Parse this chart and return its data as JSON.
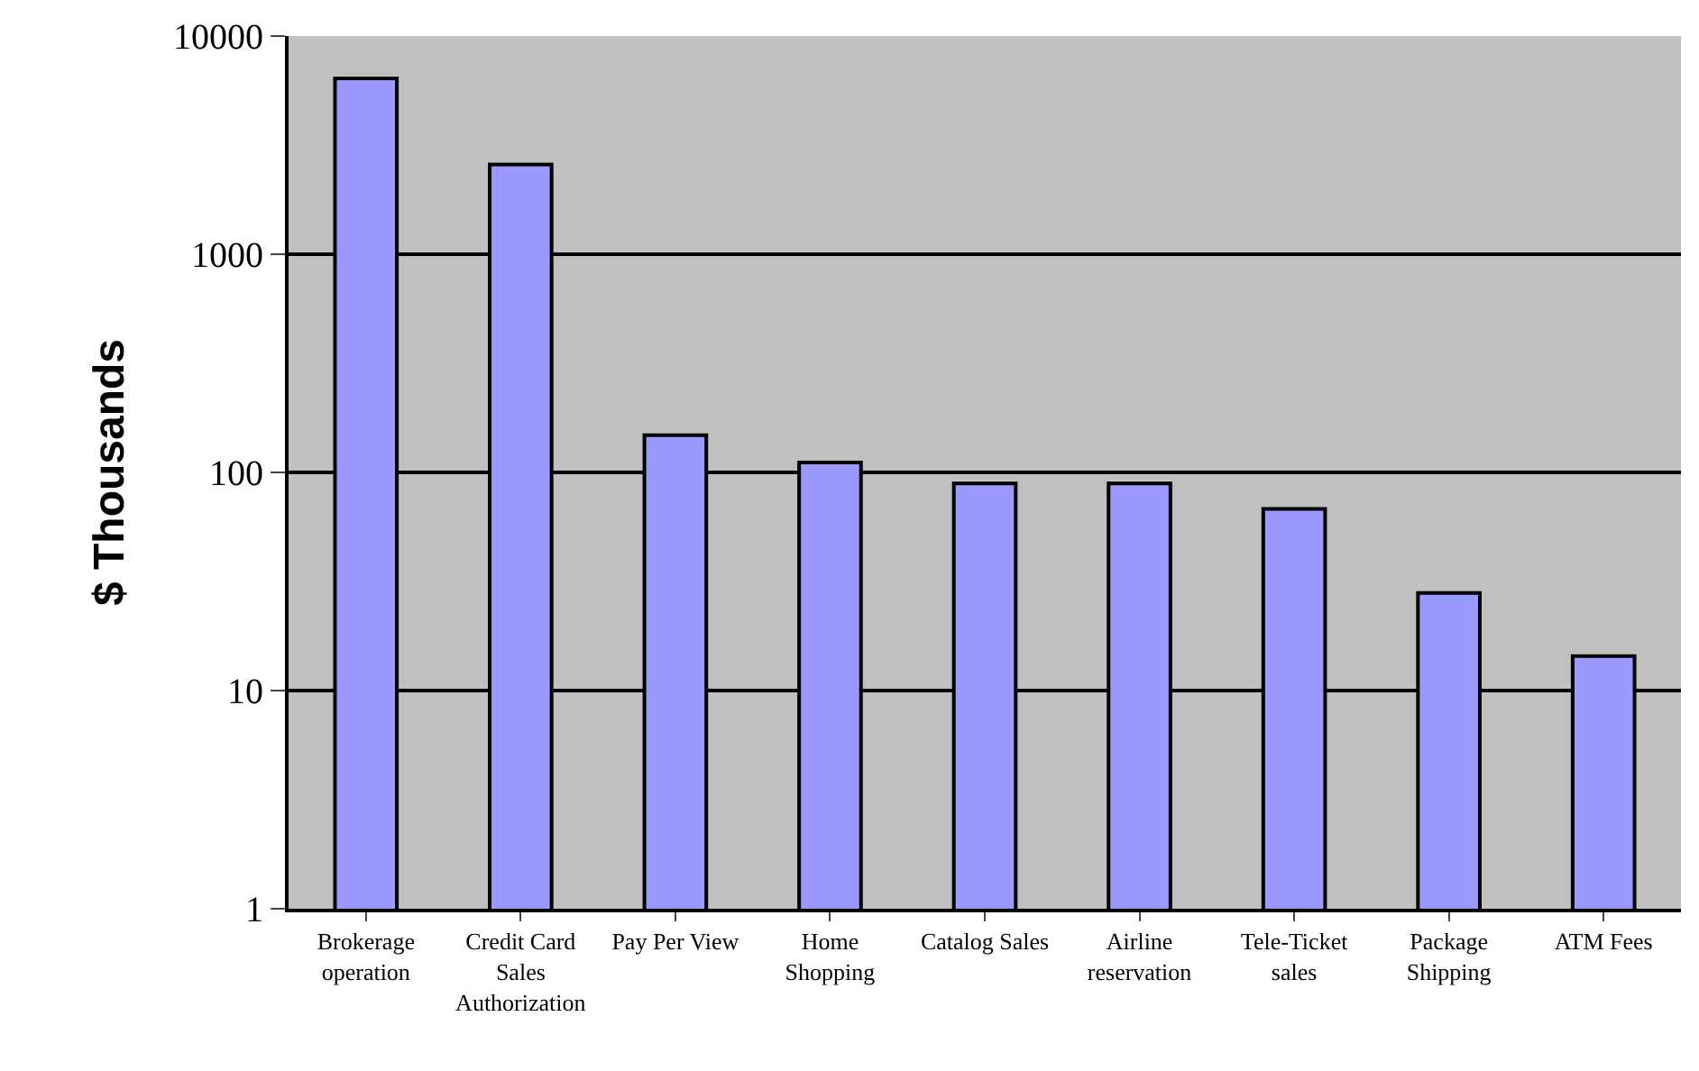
{
  "chart_data": {
    "type": "bar",
    "ylabel": "$ Thousands",
    "categories": [
      "Brokerage\noperation",
      "Credit Card\nSales\nAuthorization",
      "Pay Per View",
      "Home\nShopping",
      "Catalog Sales",
      "Airline\nreservation",
      "Tele-Ticket\nsales",
      "Package\nShipping",
      "ATM Fees"
    ],
    "values": [
      6400,
      2580,
      148,
      111,
      89,
      89,
      68,
      28,
      14.4
    ],
    "color": "#9999ff",
    "log": true,
    "ylim": [
      1,
      10000
    ],
    "yticks": [
      1,
      10,
      100,
      1000,
      10000
    ],
    "grid": "y",
    "legend": false
  }
}
